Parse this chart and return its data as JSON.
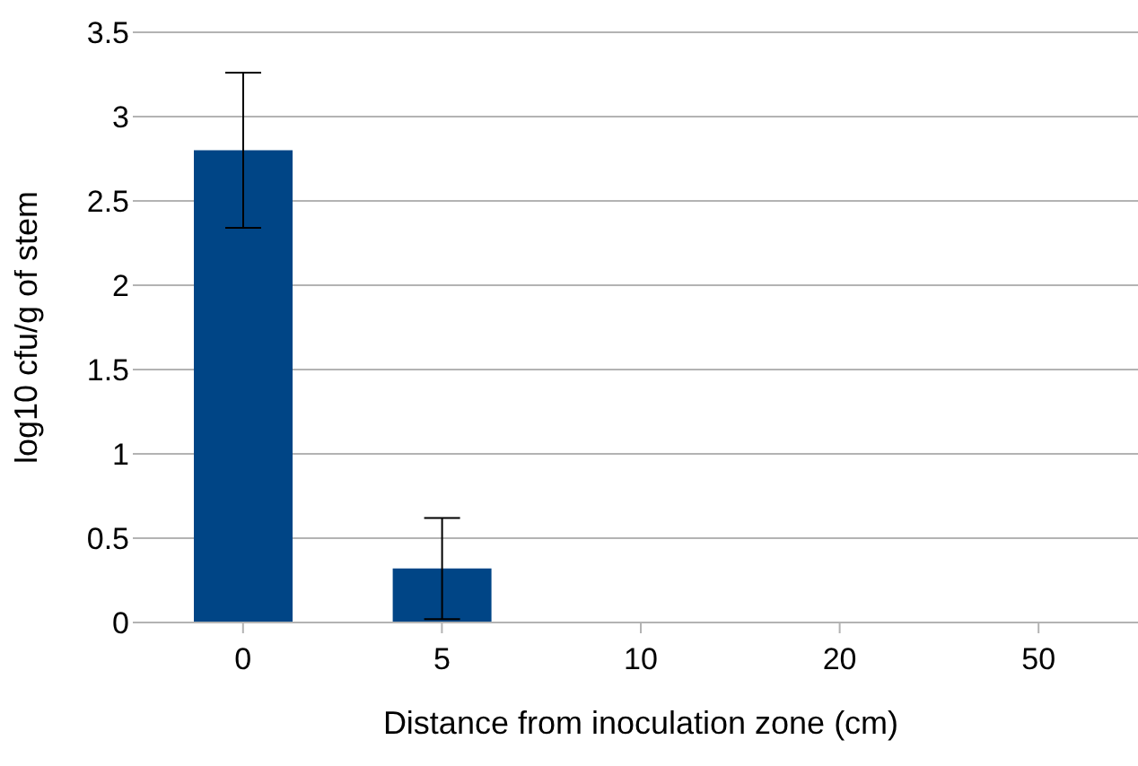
{
  "chart_data": {
    "type": "bar",
    "xlabel": "Distance from inoculation zone (cm)",
    "ylabel": "log10 cfu/g of stem",
    "categories": [
      "0",
      "5",
      "10",
      "20",
      "50"
    ],
    "values": [
      2.8,
      0.32,
      0,
      0,
      0
    ],
    "errors": [
      0.46,
      0.3,
      null,
      null,
      null
    ],
    "color": "#004586",
    "ylim": [
      0,
      3.5
    ],
    "yticks": [
      0,
      0.5,
      1,
      1.5,
      2,
      2.5,
      3,
      3.5
    ],
    "grid": "y"
  }
}
